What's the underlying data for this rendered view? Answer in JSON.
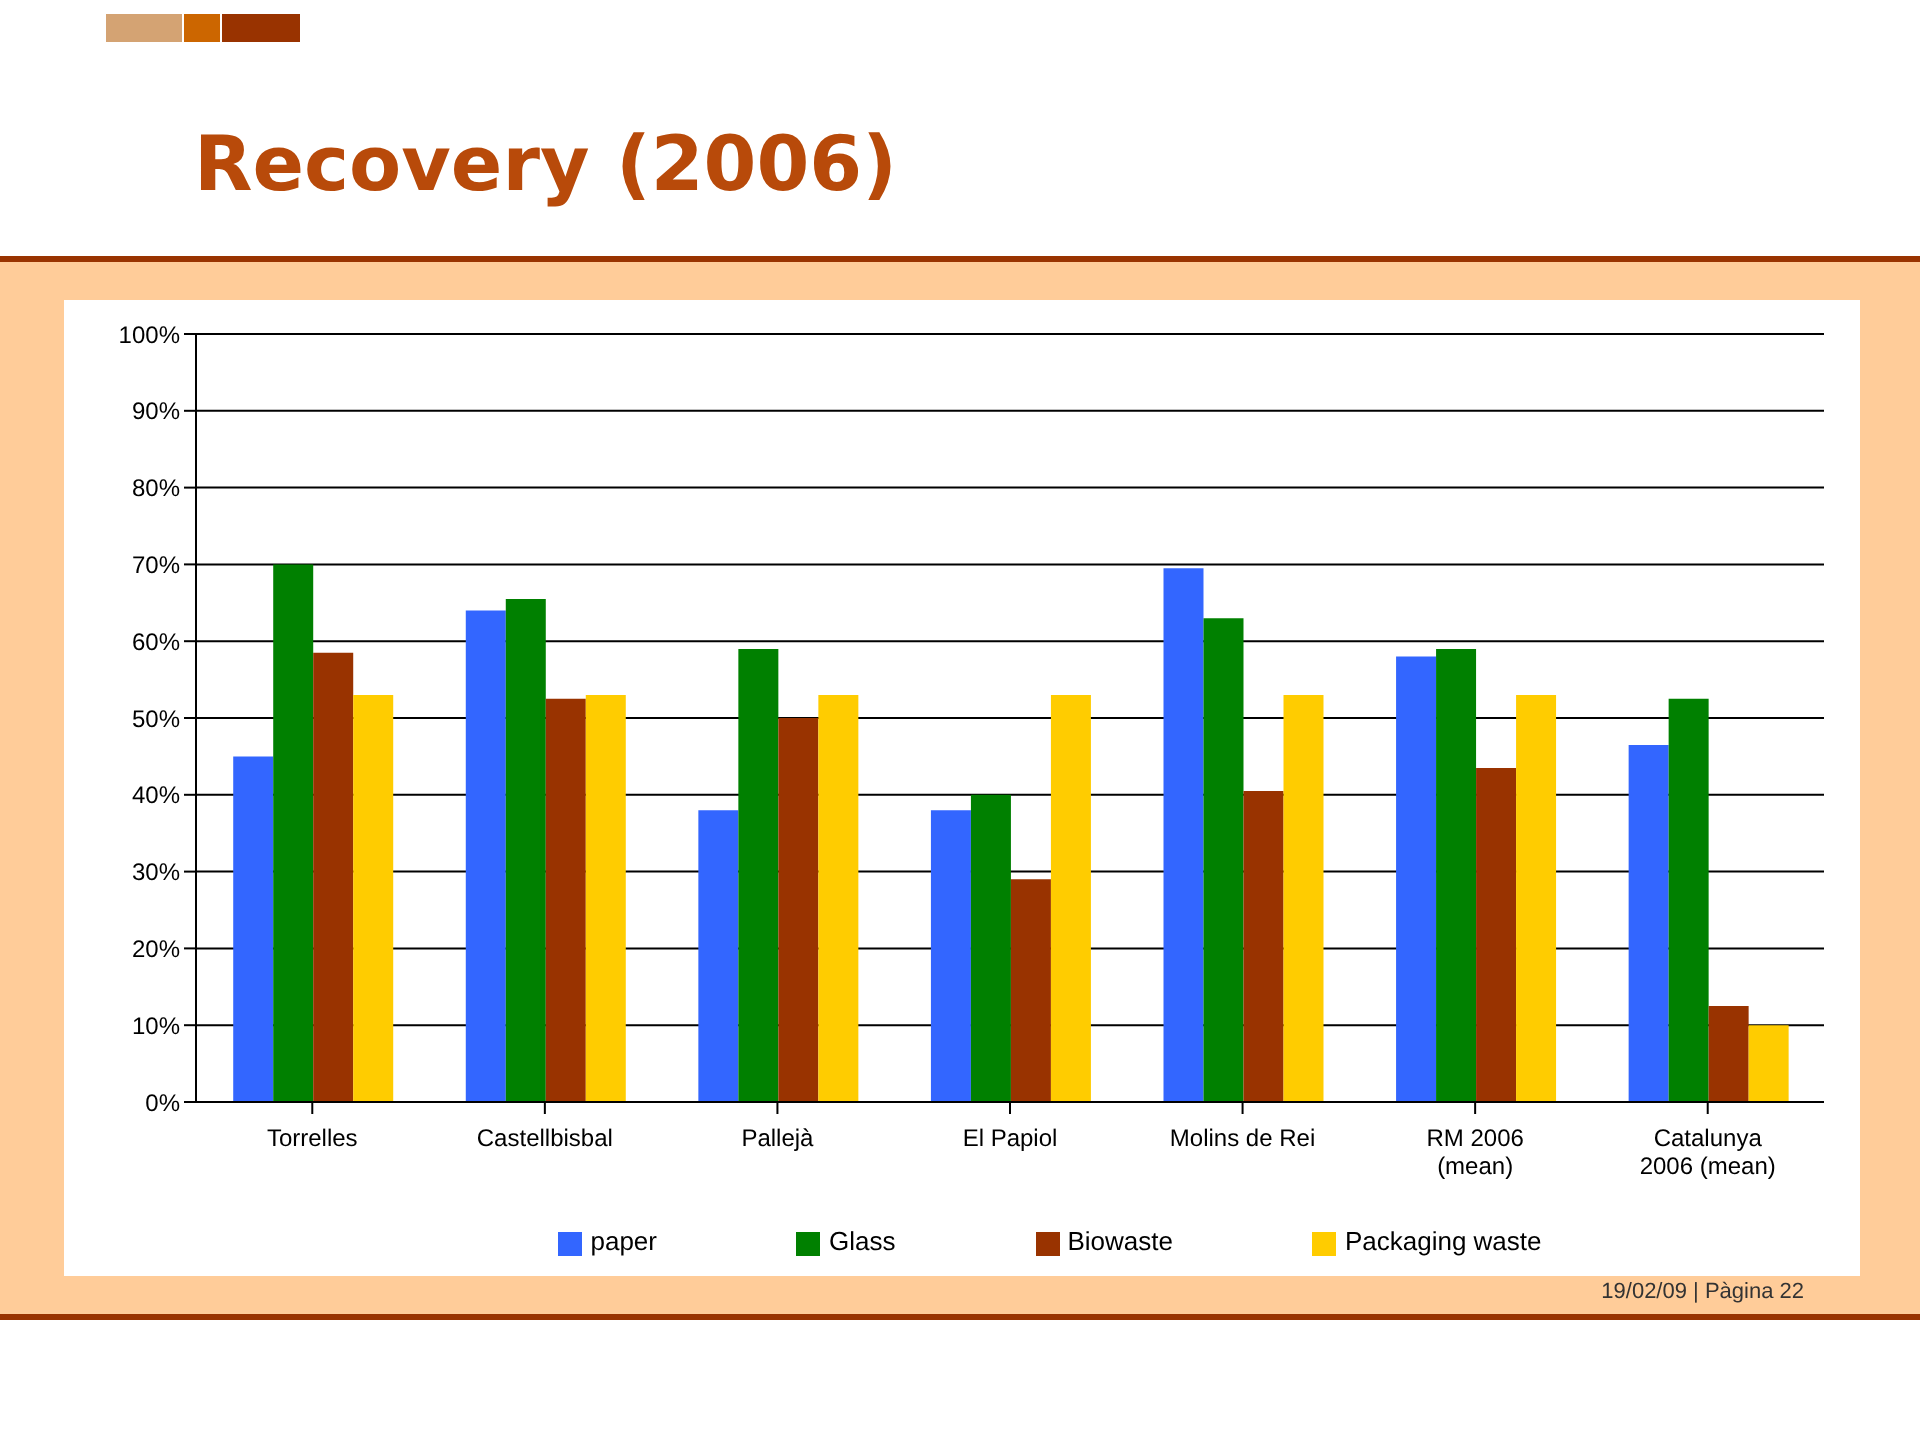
{
  "chart_data": {
    "type": "bar",
    "title": "Recovery (2006)",
    "categories": [
      "Torrelles",
      "Castellbisbal",
      "Pallejà",
      "El Papiol",
      "Molins de Rei",
      "RM 2006 (mean)",
      "Catalunya 2006 (mean)"
    ],
    "series": [
      {
        "name": "paper",
        "color": "#3366ff",
        "values": [
          45,
          64,
          38,
          38,
          69.5,
          58,
          46.5
        ]
      },
      {
        "name": "Glass",
        "color": "#008000",
        "values": [
          70,
          65.5,
          59,
          40,
          63,
          59,
          52.5
        ]
      },
      {
        "name": "Biowaste",
        "color": "#993300",
        "values": [
          58.5,
          52.5,
          50,
          29,
          40.5,
          43.5,
          12.5
        ]
      },
      {
        "name": "Packaging waste",
        "color": "#ffcc00",
        "values": [
          53,
          53,
          53,
          53,
          53,
          53,
          10
        ]
      }
    ],
    "ylim": [
      0,
      100
    ],
    "yticks": [
      {
        "value": 0,
        "label": "0%"
      },
      {
        "value": 10,
        "label": "10%"
      },
      {
        "value": 20,
        "label": "20%"
      },
      {
        "value": 30,
        "label": "30%"
      },
      {
        "value": 40,
        "label": "40%"
      },
      {
        "value": 50,
        "label": "50%"
      },
      {
        "value": 60,
        "label": "60%"
      },
      {
        "value": 70,
        "label": "70%"
      },
      {
        "value": 80,
        "label": "80%"
      },
      {
        "value": 90,
        "label": "90%"
      },
      {
        "value": 100,
        "label": "100%"
      }
    ],
    "grid": "y",
    "legend": "bottom",
    "annotations": [
      "19/02/09 | Pàgina 22"
    ]
  }
}
